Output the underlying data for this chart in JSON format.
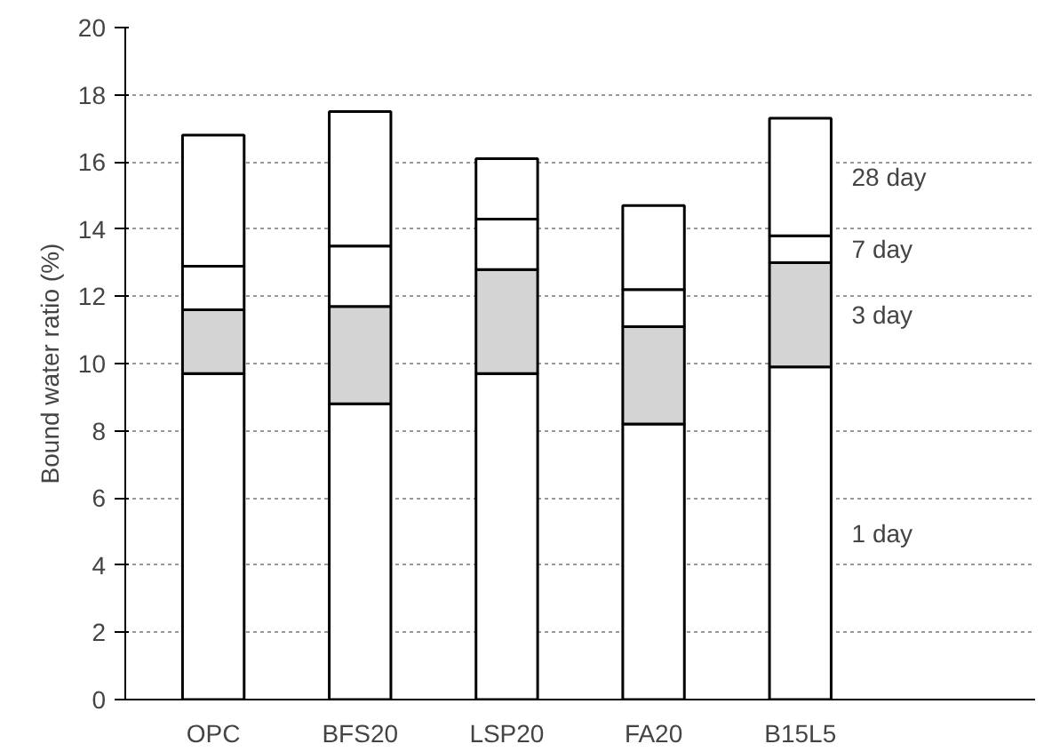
{
  "chart_data": {
    "type": "bar",
    "stacked": true,
    "ylabel": "Bound water ratio (%)",
    "categories": [
      "OPC",
      "BFS20",
      "LSP20",
      "FA20",
      "B15L5"
    ],
    "series": [
      {
        "name": "1 day",
        "color": "#ffffff",
        "values": [
          9.7,
          8.8,
          9.7,
          8.2,
          9.9
        ]
      },
      {
        "name": "3 day",
        "color": "#d4d4d4",
        "values": [
          1.9,
          2.9,
          3.1,
          2.9,
          3.1
        ]
      },
      {
        "name": "7 day",
        "color": "#ffffff",
        "values": [
          1.3,
          1.8,
          1.5,
          1.1,
          0.8
        ]
      },
      {
        "name": "28 day",
        "color": "#ffffff",
        "values": [
          3.9,
          4.0,
          1.8,
          2.5,
          3.5
        ]
      }
    ],
    "ylim": [
      0,
      20
    ],
    "yticks": [
      0,
      2,
      4,
      6,
      8,
      10,
      12,
      14,
      16,
      18,
      20
    ],
    "grid": "y"
  }
}
